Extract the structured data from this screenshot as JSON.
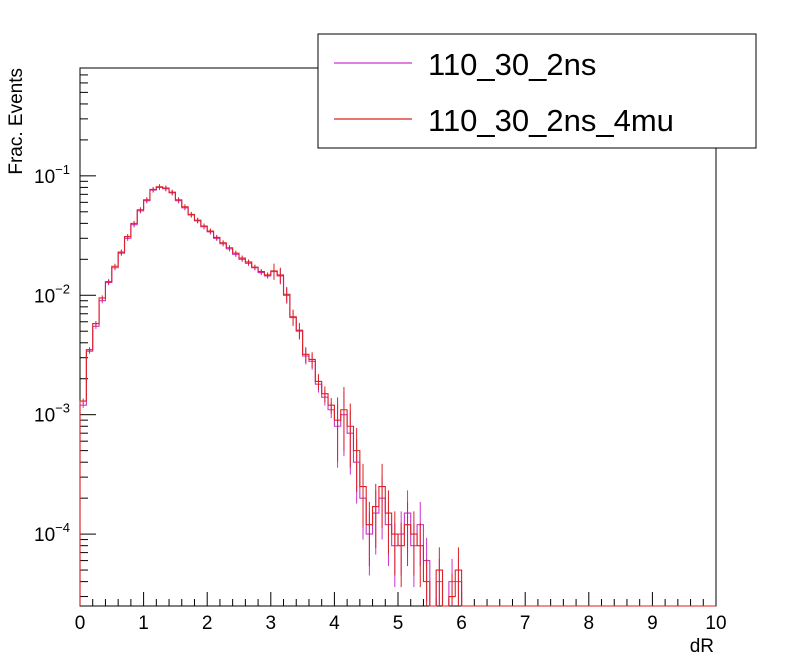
{
  "chart_data": {
    "type": "histogram",
    "title": "",
    "xlabel": "dR",
    "ylabel": "Frac. Events",
    "xlim": [
      0,
      10
    ],
    "ylim": [
      2.5e-05,
      0.8
    ],
    "yscale": "log",
    "bin_width": 0.1,
    "x_ticks": [
      "0",
      "1",
      "2",
      "3",
      "4",
      "5",
      "6",
      "7",
      "8",
      "9",
      "10"
    ],
    "y_ticks": [
      {
        "base": "10",
        "exp": "−4",
        "value": 0.0001
      },
      {
        "base": "10",
        "exp": "−3",
        "value": 0.001
      },
      {
        "base": "10",
        "exp": "−2",
        "value": 0.01
      },
      {
        "base": "10",
        "exp": "−1",
        "value": 0.1
      }
    ],
    "grid": false,
    "legend_position": "top-right",
    "series": [
      {
        "name": "110_30_2ns",
        "color": "#cc33cc",
        "values": [
          0.0012,
          0.0034,
          0.0055,
          0.009,
          0.0128,
          0.017,
          0.0225,
          0.03,
          0.039,
          0.051,
          0.062,
          0.076,
          0.08,
          0.078,
          0.072,
          0.062,
          0.054,
          0.047,
          0.042,
          0.0375,
          0.034,
          0.03,
          0.027,
          0.0245,
          0.022,
          0.02,
          0.0185,
          0.017,
          0.0155,
          0.0145,
          0.0158,
          0.0145,
          0.01,
          0.0065,
          0.005,
          0.0031,
          0.0028,
          0.0018,
          0.0014,
          0.0011,
          0.0008,
          0.001,
          0.0007,
          0.0004,
          0.0002,
          0.0001,
          0.00015,
          0.0002,
          0.00012,
          8e-05,
          0.0001,
          0.00015,
          8e-05,
          0.00012,
          6e-05,
          0.0,
          4e-05,
          0.0,
          4e-05,
          4e-05,
          0,
          0,
          0,
          0,
          0,
          0,
          0,
          0,
          0,
          0,
          0,
          0,
          0,
          0,
          0,
          0,
          0,
          0,
          0,
          0,
          0,
          0,
          0,
          0,
          0,
          0,
          0,
          0,
          0,
          0,
          0,
          0,
          0,
          0,
          0,
          0,
          0,
          0,
          0,
          0
        ]
      },
      {
        "name": "110_30_2ns_4mu",
        "color": "#dd2222",
        "values": [
          0.0013,
          0.0035,
          0.0058,
          0.0095,
          0.013,
          0.0175,
          0.023,
          0.031,
          0.04,
          0.052,
          0.063,
          0.077,
          0.081,
          0.079,
          0.073,
          0.063,
          0.055,
          0.0475,
          0.0425,
          0.038,
          0.0345,
          0.0305,
          0.0275,
          0.025,
          0.0225,
          0.0205,
          0.019,
          0.0172,
          0.0158,
          0.0148,
          0.016,
          0.0148,
          0.0102,
          0.0066,
          0.0051,
          0.0032,
          0.0029,
          0.0019,
          0.0015,
          0.0012,
          0.0009,
          0.0011,
          0.0008,
          0.0005,
          0.00025,
          0.00012,
          0.00017,
          0.00025,
          0.00015,
          0.0001,
          8e-05,
          0.00012,
          0.0001,
          8e-05,
          4e-05,
          0.0,
          5e-05,
          0.0,
          3e-05,
          5e-05,
          0,
          0,
          0,
          0,
          0,
          0,
          0,
          0,
          0,
          0,
          0,
          0,
          0,
          0,
          0,
          0,
          0,
          0,
          0,
          0,
          0,
          0,
          0,
          0,
          0,
          0,
          0,
          0,
          0,
          0,
          0,
          0,
          0,
          0,
          0,
          0,
          0,
          0,
          0,
          0
        ]
      }
    ]
  }
}
